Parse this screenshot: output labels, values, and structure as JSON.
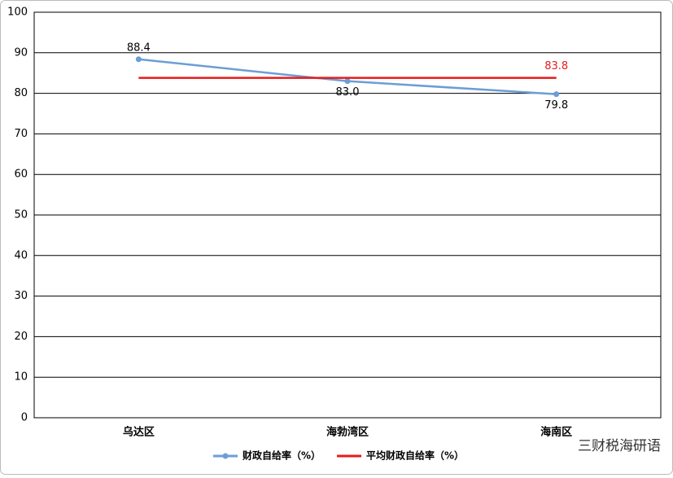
{
  "chart_data": {
    "type": "line",
    "categories": [
      "乌达区",
      "海勃湾区",
      "海南区"
    ],
    "series": [
      {
        "name": "财政自给率（%）",
        "color": "#6b9ed6",
        "values": [
          88.4,
          83.0,
          79.8
        ],
        "value_labels": [
          "88.4",
          "83.0",
          "79.8"
        ],
        "markers": true
      },
      {
        "name": "平均财政自给率（%）",
        "color": "#e81a1a",
        "values": [
          83.8,
          83.8,
          83.8
        ],
        "value_labels": [
          null,
          null,
          "83.8"
        ],
        "markers": false
      }
    ],
    "ylim": [
      0,
      100
    ],
    "yticks": [
      0,
      10,
      20,
      30,
      40,
      50,
      60,
      70,
      80,
      90,
      100
    ],
    "grid": true,
    "legend": "bottom",
    "watermark": "三财税海研语"
  }
}
